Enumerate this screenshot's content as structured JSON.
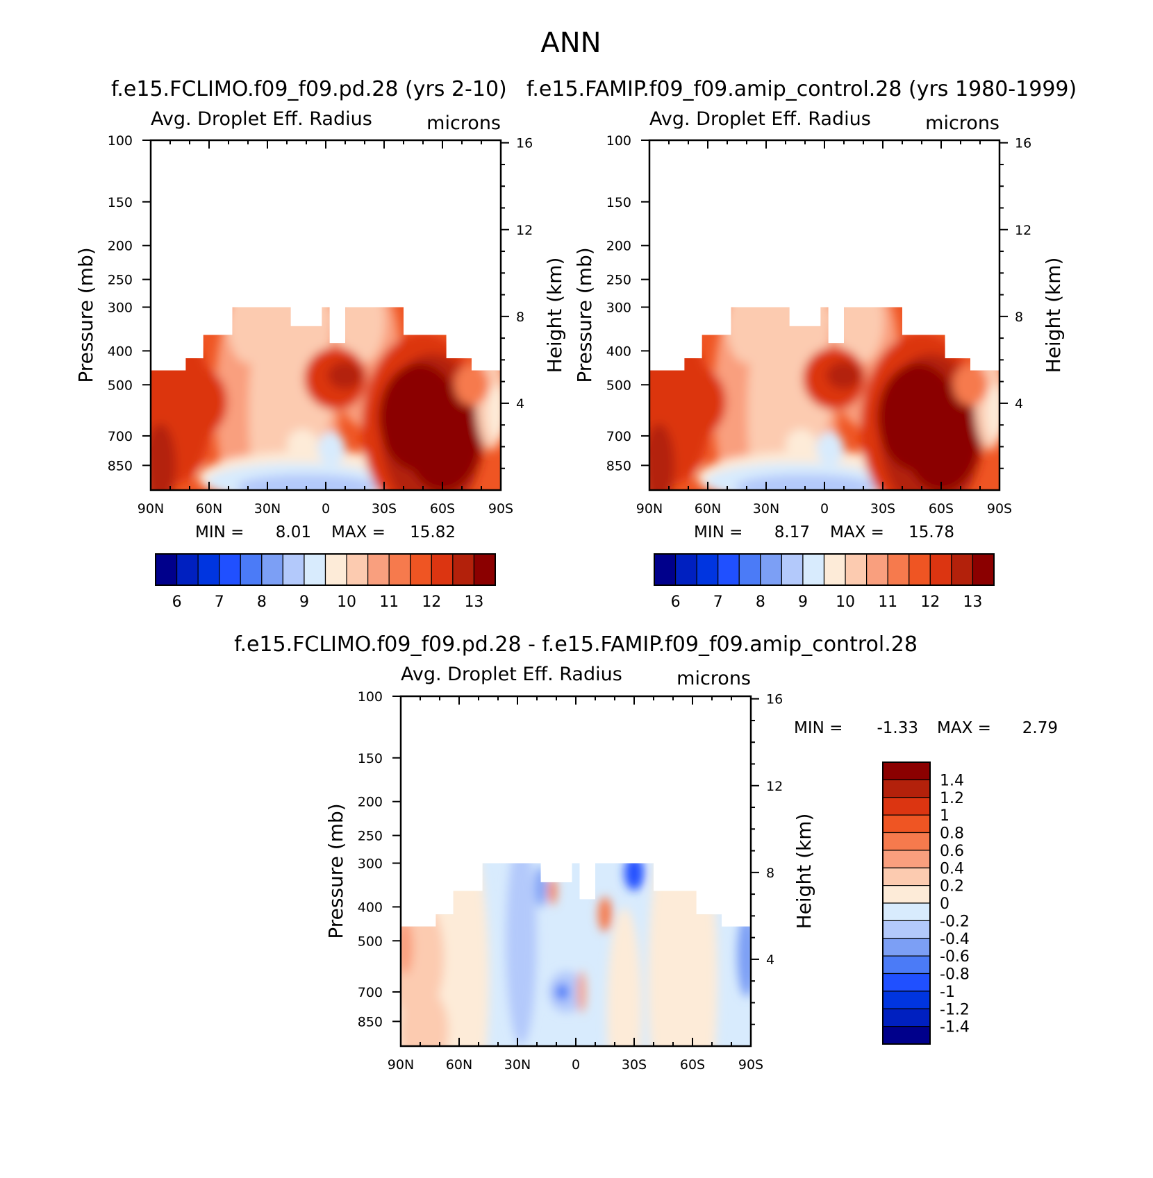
{
  "figure": {
    "title": "ANN"
  },
  "colors": {
    "scale15": [
      "#00008b",
      "#0020c0",
      "#0035e0",
      "#2050ff",
      "#4b7bf7",
      "#7c9ff5",
      "#b3c9fb",
      "#d8ebfd",
      "#fdebd8",
      "#fccbb0",
      "#f99f7e",
      "#f67a4d",
      "#ef5523",
      "#dc3511",
      "#b3210b",
      "#8b0000"
    ],
    "diff16": [
      "#00008b",
      "#0020c0",
      "#0035e0",
      "#2050ff",
      "#4b7bf7",
      "#7c9ff5",
      "#b3c9fb",
      "#d8ebfd",
      "#fdebd8",
      "#fccbb0",
      "#f99f7e",
      "#f67a4d",
      "#ef5523",
      "#dc3511",
      "#b3210b",
      "#8b0000"
    ]
  },
  "chart_data": [
    {
      "type": "heatmap",
      "panel": "test",
      "title": "f.e15.FCLIMO.f09_f09.pd.28 (yrs 2-10)",
      "variable": "Avg. Droplet Eff. Radius",
      "units": "microns",
      "xlabel": "",
      "ylabel": "Pressure (mb)",
      "ylabel_right": "Height (km)",
      "xticks": [
        "90N",
        "60N",
        "30N",
        "0",
        "30S",
        "60S",
        "90S"
      ],
      "yticks": [
        "100",
        "150",
        "200",
        "250",
        "300",
        "400",
        "500",
        "700",
        "850"
      ],
      "yticks_right": [
        "16",
        "12",
        "8",
        "4"
      ],
      "xlim": [
        90,
        -90
      ],
      "ylim": [
        100,
        1000
      ],
      "min_label": "MIN =",
      "min_value": "8.01",
      "max_label": "MAX =",
      "max_value": "15.82",
      "colorbar_ticks": [
        "6",
        "7",
        "8",
        "9",
        "10",
        "11",
        "12",
        "13"
      ]
    },
    {
      "type": "heatmap",
      "panel": "control",
      "title": "f.e15.FAMIP.f09_f09.amip_control.28 (yrs 1980-1999)",
      "variable": "Avg. Droplet Eff. Radius",
      "units": "microns",
      "xlabel": "",
      "ylabel": "Pressure (mb)",
      "ylabel_right": "Height (km)",
      "xticks": [
        "90N",
        "60N",
        "30N",
        "0",
        "30S",
        "60S",
        "90S"
      ],
      "yticks": [
        "100",
        "150",
        "200",
        "250",
        "300",
        "400",
        "500",
        "700",
        "850"
      ],
      "yticks_right": [
        "16",
        "12",
        "8",
        "4"
      ],
      "xlim": [
        90,
        -90
      ],
      "ylim": [
        100,
        1000
      ],
      "min_label": "MIN =",
      "min_value": "8.17",
      "max_label": "MAX =",
      "max_value": "15.78",
      "colorbar_ticks": [
        "6",
        "7",
        "8",
        "9",
        "10",
        "11",
        "12",
        "13"
      ]
    },
    {
      "type": "heatmap",
      "panel": "difference",
      "title": "f.e15.FCLIMO.f09_f09.pd.28 - f.e15.FAMIP.f09_f09.amip_control.28",
      "variable": "Avg. Droplet Eff. Radius",
      "units": "microns",
      "xlabel": "",
      "ylabel": "Pressure (mb)",
      "ylabel_right": "Height (km)",
      "xticks": [
        "90N",
        "60N",
        "30N",
        "0",
        "30S",
        "60S",
        "90S"
      ],
      "yticks": [
        "100",
        "150",
        "200",
        "250",
        "300",
        "400",
        "500",
        "700",
        "850"
      ],
      "yticks_right": [
        "16",
        "12",
        "8",
        "4"
      ],
      "xlim": [
        90,
        -90
      ],
      "ylim": [
        100,
        1000
      ],
      "min_label": "MIN =",
      "min_value": "-1.33",
      "max_label": "MAX =",
      "max_value": "2.79",
      "colorbar_ticks": [
        "1.4",
        "1.2",
        "1",
        "0.8",
        "0.6",
        "0.4",
        "0.2",
        "0",
        "-0.2",
        "-0.4",
        "-0.6",
        "-0.8",
        "-1",
        "-1.2",
        "-1.4"
      ]
    }
  ]
}
